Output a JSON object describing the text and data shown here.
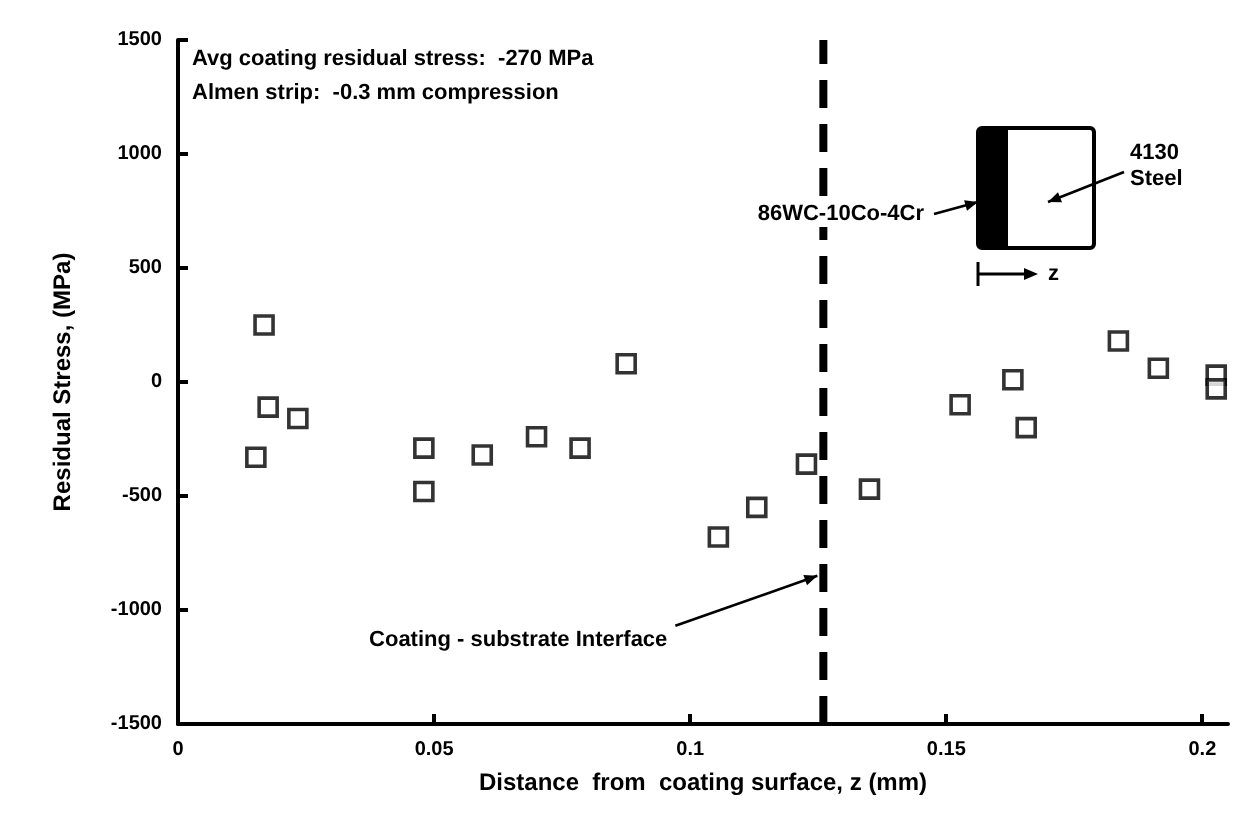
{
  "chart_data": {
    "type": "scatter",
    "xlabel": "Distance  from  coating surface, z (mm)",
    "ylabel": "Residual Stress, (MPa)",
    "x": [
      0.0152,
      0.0168,
      0.0176,
      0.0234,
      0.048,
      0.048,
      0.0594,
      0.07,
      0.0785,
      0.0875,
      0.1055,
      0.113,
      0.1227,
      0.135,
      0.1527,
      0.163,
      0.1656,
      0.1836,
      0.1914,
      0.2027,
      0.2027
    ],
    "series": [
      {
        "color": "#000000",
        "values": [
          -330,
          250,
          -110,
          -160,
          -290,
          -480,
          -320,
          -240,
          -290,
          80,
          -680,
          -550,
          -360,
          -470,
          -100,
          10,
          -200,
          180,
          60,
          30,
          -30
        ]
      }
    ],
    "xlim": [
      0,
      0.205
    ],
    "xticks": [
      0,
      0.05,
      0.1,
      0.15,
      0.2
    ],
    "ylim": [
      -1500,
      1500
    ],
    "yticks": [
      -1500,
      -1000,
      -500,
      0,
      500,
      1000,
      1500
    ],
    "marker": "square",
    "grid": false,
    "legend": false,
    "ref_lines": [
      {
        "axis": "x",
        "value": 0.126,
        "label": "Coating - substrate Interface",
        "color": "#000000",
        "line_style": "dashed"
      }
    ],
    "annotations": [
      "Avg coating residual stress:  -270 MPa",
      "Almen strip:  -0.3 mm compression",
      "86WC-10Co-4Cr",
      "4130 Steel",
      "z"
    ]
  }
}
